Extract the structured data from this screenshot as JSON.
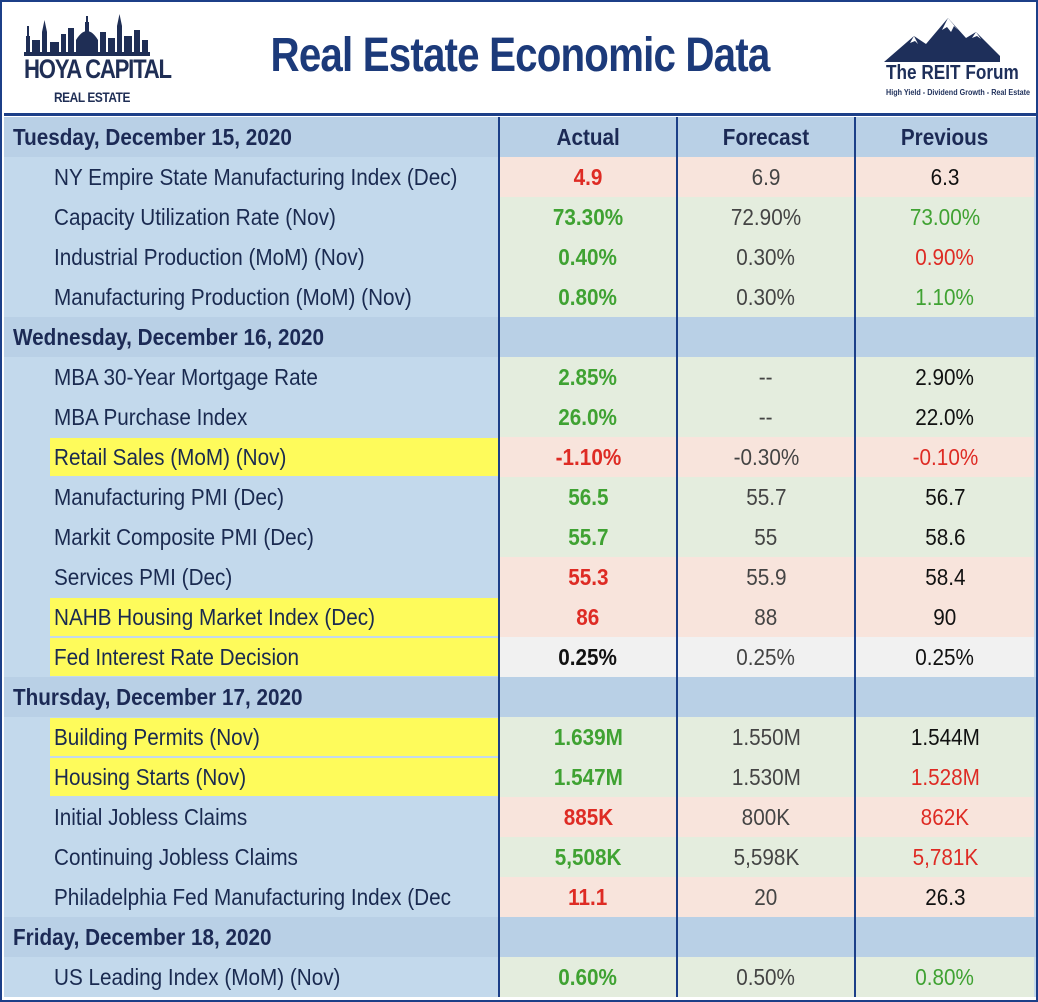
{
  "header": {
    "title": "Real Estate Economic Data",
    "left_logo": {
      "main": "HOYA CAPITAL",
      "sub": "REAL ESTATE"
    },
    "right_logo": {
      "main": "The REIT Forum",
      "sub": "High Yield - Dividend Growth - Real Estate"
    }
  },
  "columns": {
    "actual": "Actual",
    "forecast": "Forecast",
    "previous": "Previous"
  },
  "colors": {
    "green_text": "#3fa232",
    "red_text": "#de2b24",
    "green_bg": "#e4edde",
    "red_bg": "#f8e4dc",
    "highlight": "#fefb5b",
    "section_bg": "#b9d0e6"
  },
  "sections": [
    {
      "day": "Tuesday, December 15, 2020",
      "show_headers": true,
      "rows": [
        {
          "name": "NY Empire State Manufacturing Index (Dec)",
          "actual": "4.9",
          "forecast": "6.9",
          "previous": "6.3",
          "actual_color": "red",
          "previous_color": "black",
          "bg": "red",
          "highlight": false
        },
        {
          "name": "Capacity Utilization Rate (Nov)",
          "actual": "73.30%",
          "forecast": "72.90%",
          "previous": "73.00%",
          "actual_color": "green",
          "previous_color": "green",
          "bg": "green",
          "highlight": false
        },
        {
          "name": "Industrial Production (MoM) (Nov)",
          "actual": "0.40%",
          "forecast": "0.30%",
          "previous": "0.90%",
          "actual_color": "green",
          "previous_color": "red",
          "bg": "green",
          "highlight": false
        },
        {
          "name": "Manufacturing Production (MoM) (Nov)",
          "actual": "0.80%",
          "forecast": "0.30%",
          "previous": "1.10%",
          "actual_color": "green",
          "previous_color": "green",
          "bg": "green",
          "highlight": false
        }
      ]
    },
    {
      "day": "Wednesday, December 16, 2020",
      "show_headers": false,
      "rows": [
        {
          "name": "MBA 30-Year Mortgage Rate",
          "actual": "2.85%",
          "forecast": "--",
          "previous": "2.90%",
          "actual_color": "green",
          "previous_color": "black",
          "bg": "green",
          "highlight": false
        },
        {
          "name": "MBA Purchase Index",
          "actual": "26.0%",
          "forecast": "--",
          "previous": "22.0%",
          "actual_color": "green",
          "previous_color": "black",
          "bg": "green",
          "highlight": false
        },
        {
          "name": "Retail Sales (MoM) (Nov)",
          "actual": "-1.10%",
          "forecast": "-0.30%",
          "previous": "-0.10%",
          "actual_color": "red",
          "previous_color": "red",
          "bg": "red",
          "highlight": true
        },
        {
          "name": "Manufacturing PMI (Dec)",
          "actual": "56.5",
          "forecast": "55.7",
          "previous": "56.7",
          "actual_color": "green",
          "previous_color": "black",
          "bg": "green",
          "highlight": false
        },
        {
          "name": "Markit Composite PMI (Dec)",
          "actual": "55.7",
          "forecast": "55",
          "previous": "58.6",
          "actual_color": "green",
          "previous_color": "black",
          "bg": "green",
          "highlight": false
        },
        {
          "name": "Services PMI (Dec)",
          "actual": "55.3",
          "forecast": "55.9",
          "previous": "58.4",
          "actual_color": "red",
          "previous_color": "black",
          "bg": "red",
          "highlight": false
        },
        {
          "name": "NAHB Housing Market Index (Dec)",
          "actual": "86",
          "forecast": "88",
          "previous": "90",
          "actual_color": "red",
          "previous_color": "black",
          "bg": "red",
          "highlight": true
        },
        {
          "name": "Fed Interest Rate Decision",
          "actual": "0.25%",
          "forecast": "0.25%",
          "previous": "0.25%",
          "actual_color": "black",
          "previous_color": "black",
          "bg": "white",
          "highlight": true
        }
      ]
    },
    {
      "day": "Thursday, December 17, 2020",
      "show_headers": false,
      "rows": [
        {
          "name": "Building Permits (Nov)",
          "actual": "1.639M",
          "forecast": "1.550M",
          "previous": "1.544M",
          "actual_color": "green",
          "previous_color": "black",
          "bg": "green",
          "highlight": true
        },
        {
          "name": "Housing Starts (Nov)",
          "actual": "1.547M",
          "forecast": "1.530M",
          "previous": "1.528M",
          "actual_color": "green",
          "previous_color": "red",
          "bg": "green",
          "highlight": true
        },
        {
          "name": "Initial Jobless Claims",
          "actual": "885K",
          "forecast": "800K",
          "previous": "862K",
          "actual_color": "red",
          "previous_color": "red",
          "bg": "red",
          "highlight": false
        },
        {
          "name": "Continuing Jobless Claims",
          "actual": "5,508K",
          "forecast": "5,598K",
          "previous": "5,781K",
          "actual_color": "green",
          "previous_color": "red",
          "bg": "green",
          "highlight": false
        },
        {
          "name": "Philadelphia Fed Manufacturing Index (Dec",
          "actual": "11.1",
          "forecast": "20",
          "previous": "26.3",
          "actual_color": "red",
          "previous_color": "black",
          "bg": "red",
          "highlight": false
        }
      ]
    },
    {
      "day": "Friday, December 18, 2020",
      "show_headers": false,
      "rows": [
        {
          "name": "US Leading Index (MoM) (Nov)",
          "actual": "0.60%",
          "forecast": "0.50%",
          "previous": "0.80%",
          "actual_color": "green",
          "previous_color": "green",
          "bg": "green",
          "highlight": false
        }
      ]
    }
  ]
}
